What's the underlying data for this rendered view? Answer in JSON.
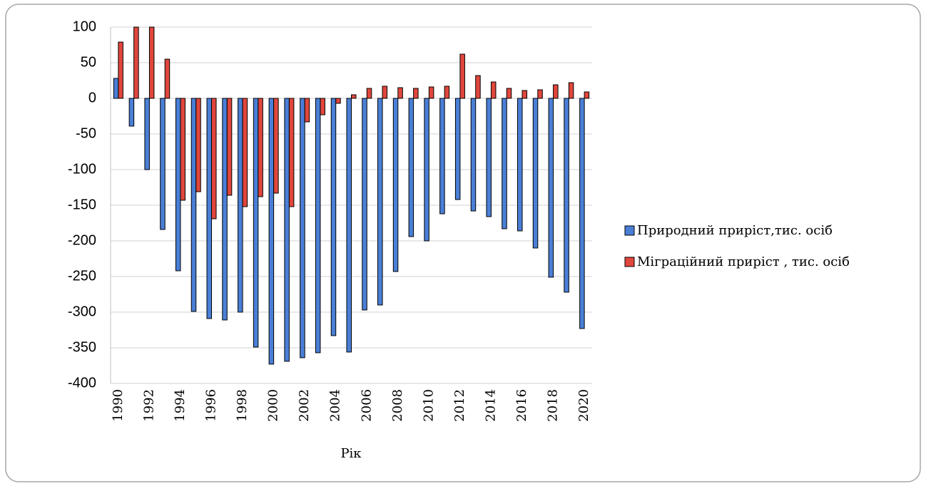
{
  "chart_data": {
    "type": "bar",
    "x_label": "Рік",
    "categories": [
      "1990",
      null,
      "1992",
      null,
      "1994",
      null,
      "1996",
      null,
      "1998",
      null,
      "2000",
      null,
      "2002",
      null,
      "2004",
      null,
      "2006",
      null,
      "2008",
      null,
      "2010",
      null,
      "2012",
      null,
      "2014",
      null,
      "2016",
      null,
      "2018",
      null,
      "2020"
    ],
    "series": [
      {
        "name": "Природний приріст,тис. осіб",
        "color": "#4a7fd6",
        "values": [
          28,
          -39,
          -100,
          -184,
          -242,
          -299,
          -309,
          -311,
          -300,
          -349,
          -373,
          -369,
          -364,
          -357,
          -333,
          -356,
          -297,
          -290,
          -243,
          -194,
          -200,
          -162,
          -142,
          -158,
          -166,
          -183,
          -186,
          -210,
          -251,
          -272,
          -323
        ]
      },
      {
        "name": "Міграційний приріст , тис. осіб",
        "color": "#e0463c",
        "values": [
          79,
          100,
          100,
          55,
          -143,
          -131,
          -169,
          -136,
          -152,
          -138,
          -133,
          -152,
          -33,
          -23,
          -7,
          5,
          14,
          17,
          15,
          14,
          16,
          17,
          62,
          32,
          23,
          14,
          11,
          12,
          19,
          22,
          9
        ]
      }
    ],
    "ylim": [
      -400,
      100
    ],
    "yticks": [
      -400,
      -350,
      -300,
      -250,
      -200,
      -150,
      -100,
      -50,
      0,
      50,
      100
    ],
    "grid": true,
    "legend": "right"
  }
}
